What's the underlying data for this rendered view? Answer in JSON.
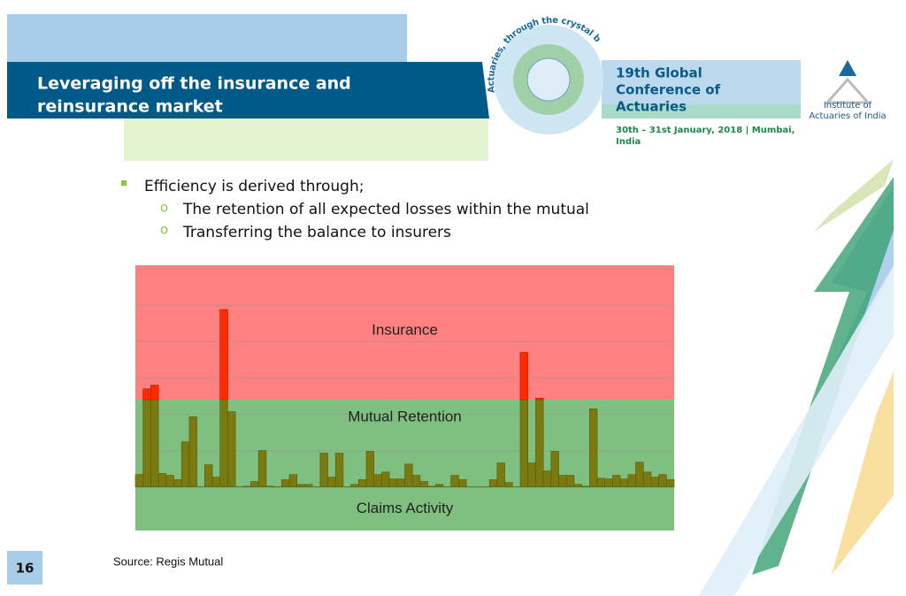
{
  "header": {
    "title_line1": "Leveraging off the insurance and",
    "title_line2": "reinsurance market",
    "conference_line1": "19th Global",
    "conference_line2": "Conference of",
    "conference_line3": "Actuaries",
    "dates_line1": "30th – 31st January, 2018 | Mumbai,",
    "dates_line2": "India",
    "logo_tagline": "Actuaries, through the crystal ball!",
    "institute_line1": "Institute of",
    "institute_line2": "Actuaries of India"
  },
  "bullets": {
    "main": "Efficiency is derived through;",
    "sub": [
      "The retention of all expected losses within the mutual",
      "Transferring the balance to insurers"
    ]
  },
  "chart_data": {
    "type": "bar",
    "values": [
      0.34,
      2.7,
      2.8,
      0.37,
      0.32,
      0.2,
      1.24,
      1.93,
      0,
      0.61,
      0.27,
      4.88,
      2.07,
      0,
      0.02,
      0.15,
      1.0,
      0.02,
      0,
      0.2,
      0.34,
      0.07,
      0.07,
      0,
      0.93,
      0.27,
      0.93,
      0,
      0.07,
      0.2,
      0.98,
      0.34,
      0.41,
      0.22,
      0.22,
      0.63,
      0.32,
      0.15,
      0.02,
      0.07,
      0,
      0.32,
      0.2,
      0,
      0,
      0,
      0.2,
      0.66,
      0.12,
      0,
      3.7,
      0.66,
      2.44,
      0.44,
      0.98,
      0.32,
      0.32,
      0.07,
      0.02,
      2.15,
      0.24,
      0.22,
      0.32,
      0.22,
      0.34,
      0.68,
      0.41,
      0.27,
      0.34,
      0.2
    ],
    "color": "#7a7a10",
    "excess_color": "#ff2a00",
    "retention_level": 2.4,
    "ylim": [
      -1.2,
      6.1
    ],
    "grid_lines": [
      1,
      2,
      3,
      4,
      5,
      6
    ],
    "band_labels": {
      "insurance": "Insurance",
      "retention": "Mutual Retention",
      "claims": "Claims Activity"
    },
    "insurance_color": "#ff8080",
    "retention_color": "#7fbf7f"
  },
  "footer": {
    "source": "Source: Regis Mutual",
    "page": "16"
  }
}
